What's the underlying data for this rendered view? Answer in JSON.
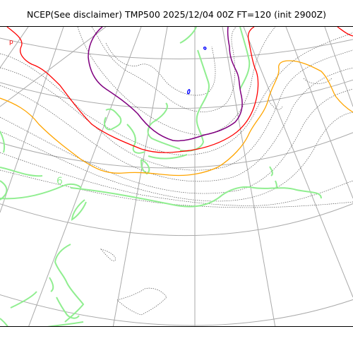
{
  "title": "NCEP(See disclaimer) TMP500 2025/12/04 00Z FT=120 (init 2900Z)",
  "map": {
    "projection": "polar-stereographic",
    "graticule_color": "#aaaaaa",
    "coastline_color": "#90ee90",
    "isotherm_dotted_color": "#555555",
    "contours": [
      {
        "name": "orange-isotherm",
        "color": "#ffa500"
      },
      {
        "name": "red-isotherm",
        "color": "#ff0000"
      },
      {
        "name": "purple-isotherm",
        "color": "#800080"
      },
      {
        "name": "blue-isotherm",
        "color": "#0000ff"
      }
    ],
    "labels": {
      "red_p": "p",
      "green_6": "6"
    }
  }
}
